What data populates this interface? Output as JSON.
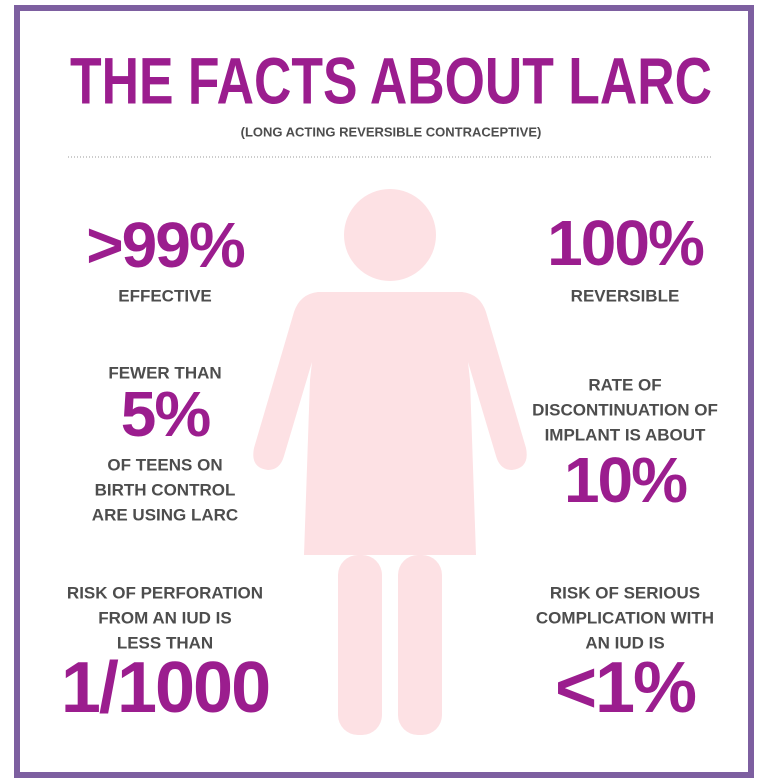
{
  "header": {
    "title": "THE FACTS ABOUT LARC",
    "subtitle": "(LONG ACTING REVERSIBLE CONTRACEPTIVE)"
  },
  "facts": [
    {
      "before": [],
      "stat": ">99%",
      "after": [
        "EFFECTIVE"
      ]
    },
    {
      "before": [],
      "stat": "100%",
      "after": [
        "REVERSIBLE"
      ]
    },
    {
      "before": [
        "FEWER THAN"
      ],
      "stat": "5%",
      "after": [
        "OF TEENS ON",
        "BIRTH CONTROL",
        "ARE USING LARC"
      ]
    },
    {
      "before": [
        "RATE OF",
        "DISCONTINUATION OF",
        "IMPLANT IS ABOUT"
      ],
      "stat": "10%",
      "after": []
    },
    {
      "before": [
        "RISK OF PERFORATION",
        "FROM AN IUD IS",
        "LESS THAN"
      ],
      "stat": "1/1000",
      "after": []
    },
    {
      "before": [
        "RISK OF SERIOUS",
        "COMPLICATION WITH",
        "AN IUD IS"
      ],
      "stat": "<1%",
      "after": []
    }
  ]
}
